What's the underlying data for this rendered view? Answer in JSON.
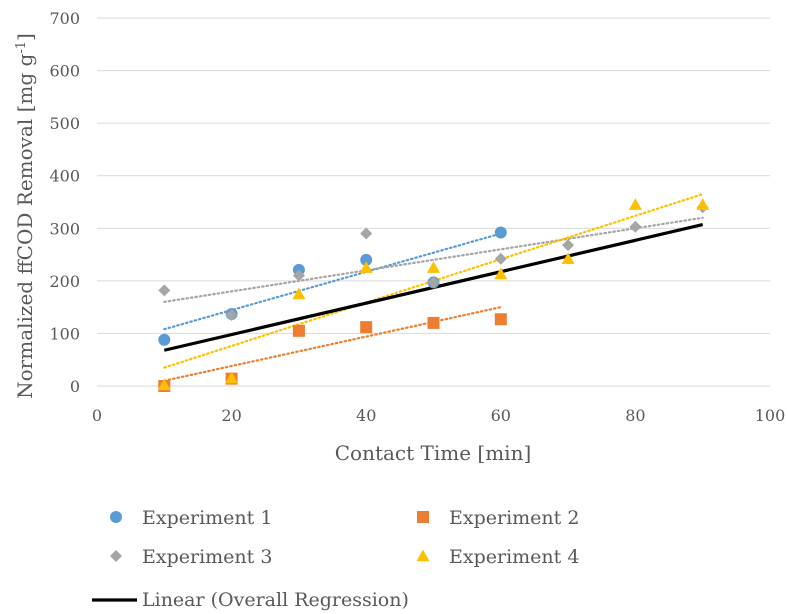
{
  "chart_data": {
    "type": "scatter",
    "xlabel": "Contact Time [min]",
    "ylabel": "Normalized ffCOD Removal [mg g",
    "ylabel_sup": "-1",
    "ylabel_end": "]",
    "xlim": [
      0,
      100
    ],
    "ylim": [
      0,
      700
    ],
    "x_ticks": [
      0,
      20,
      40,
      60,
      80,
      100
    ],
    "y_ticks": [
      0,
      100,
      200,
      300,
      400,
      500,
      600,
      700
    ],
    "grid": "horizontal",
    "legend_placement": "bottom",
    "series": [
      {
        "name": "Experiment 1",
        "marker": "circle",
        "color": "#5B9BD5",
        "x": [
          10,
          20,
          30,
          40,
          50,
          60
        ],
        "y": [
          88,
          137,
          221,
          240,
          197,
          292
        ],
        "trend": {
          "x0": 10,
          "y0": 108,
          "x1": 60,
          "y1": 290
        }
      },
      {
        "name": "Experiment 2",
        "marker": "square",
        "color": "#ED7D31",
        "x": [
          10,
          20,
          30,
          40,
          50,
          60
        ],
        "y": [
          0,
          14,
          105,
          112,
          120,
          127
        ],
        "trend": {
          "x0": 10,
          "y0": 10,
          "x1": 60,
          "y1": 150
        }
      },
      {
        "name": "Experiment 3",
        "marker": "diamond",
        "color": "#A5A5A5",
        "x": [
          10,
          20,
          30,
          40,
          50,
          60,
          70,
          80,
          90
        ],
        "y": [
          182,
          135,
          210,
          290,
          197,
          242,
          268,
          303,
          340
        ],
        "trend": {
          "x0": 10,
          "y0": 160,
          "x1": 90,
          "y1": 320
        }
      },
      {
        "name": "Experiment 4",
        "marker": "triangle",
        "color": "#FFC000",
        "x": [
          10,
          20,
          30,
          40,
          50,
          60,
          70,
          80,
          90
        ],
        "y": [
          2,
          15,
          175,
          225,
          225,
          213,
          242,
          345,
          345
        ],
        "trend": {
          "x0": 10,
          "y0": 35,
          "x1": 90,
          "y1": 365
        }
      }
    ],
    "regression": {
      "name": "Linear (Overall Regression)",
      "color": "#000000",
      "x0": 10,
      "y0": 68,
      "x1": 90,
      "y1": 307
    }
  }
}
